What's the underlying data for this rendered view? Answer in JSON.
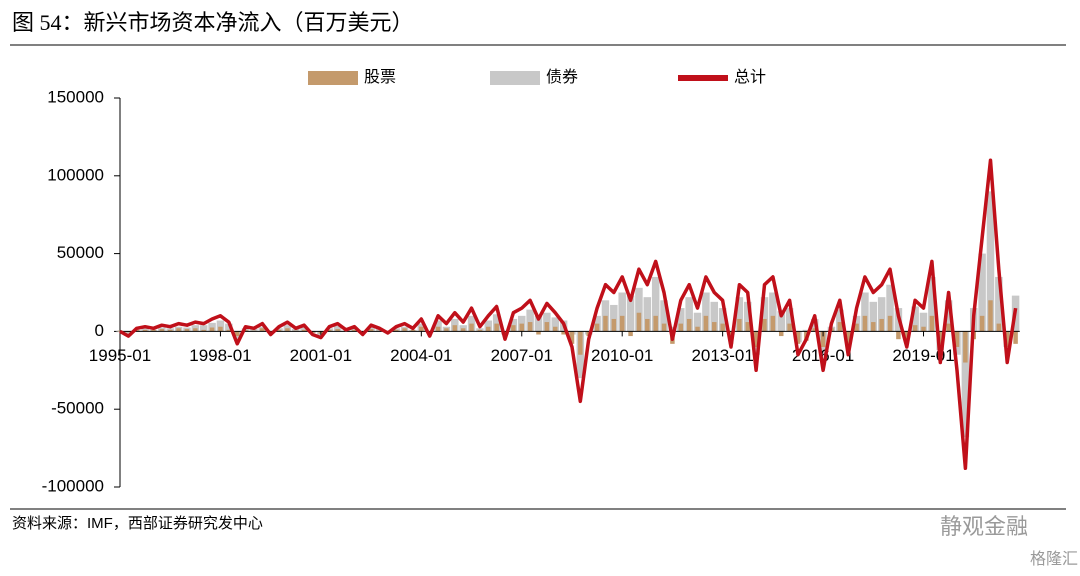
{
  "chart_data": {
    "type": "bar_line",
    "title": "图 54：新兴市场资本净流入（百万美元）",
    "source": "资料来源：IMF，西部证券研究发中心",
    "watermark": [
      "静观金融",
      "格隆汇"
    ],
    "legend": "top",
    "ylim": [
      -100000,
      150000
    ],
    "yticks": [
      -100000,
      -50000,
      0,
      50000,
      100000,
      150000
    ],
    "categories": [
      "1995-01",
      null,
      null,
      null,
      null,
      null,
      null,
      null,
      null,
      null,
      null,
      null,
      "1998-01",
      null,
      null,
      null,
      null,
      null,
      null,
      null,
      null,
      null,
      null,
      null,
      "2001-01",
      null,
      null,
      null,
      null,
      null,
      null,
      null,
      null,
      null,
      null,
      null,
      "2004-01",
      null,
      null,
      null,
      null,
      null,
      null,
      null,
      null,
      null,
      null,
      null,
      "2007-01",
      null,
      null,
      null,
      null,
      null,
      null,
      null,
      null,
      null,
      null,
      null,
      "2010-01",
      null,
      null,
      null,
      null,
      null,
      null,
      null,
      null,
      null,
      null,
      null,
      "2013-01",
      null,
      null,
      null,
      null,
      null,
      null,
      null,
      null,
      null,
      null,
      null,
      "2016-01",
      null,
      null,
      null,
      null,
      null,
      null,
      null,
      null,
      null,
      null,
      null,
      "2019-01",
      null,
      null,
      null,
      null,
      null,
      null,
      null,
      null,
      null,
      null,
      null
    ],
    "series": [
      {
        "name": "股票",
        "color": "#c49a6c",
        "kind": "bar",
        "values": [
          500,
          -500,
          1000,
          1000,
          1000,
          1500,
          1000,
          2000,
          1500,
          2000,
          1000,
          2500,
          3000,
          1000,
          -3000,
          1000,
          500,
          2000,
          -1000,
          1000,
          2000,
          500,
          1000,
          -1000,
          -1500,
          1000,
          1500,
          500,
          1000,
          -1000,
          1500,
          500,
          -500,
          1000,
          2000,
          1000,
          3000,
          -2000,
          3000,
          2000,
          4000,
          2000,
          5000,
          1000,
          3000,
          5000,
          -3000,
          4000,
          5000,
          6000,
          -2000,
          6000,
          3000,
          -2000,
          -8000,
          -15000,
          -3000,
          5000,
          10000,
          8000,
          10000,
          -3000,
          12000,
          8000,
          10000,
          5000,
          -8000,
          5000,
          8000,
          3000,
          10000,
          6000,
          5000,
          -8000,
          8000,
          6000,
          -10000,
          8000,
          10000,
          -3000,
          5000,
          -8000,
          -6000,
          2000,
          -10000,
          2000,
          6000,
          -8000,
          5000,
          10000,
          6000,
          8000,
          10000,
          -5000,
          -8000,
          4000,
          3000,
          10000,
          -8000,
          5000,
          -10000,
          -20000,
          -5000,
          10000,
          20000,
          5000,
          -10000,
          -8000
        ]
      },
      {
        "name": "债券",
        "color": "#c8c8c8",
        "kind": "bar",
        "values": [
          -500,
          -2500,
          1000,
          2000,
          1000,
          2500,
          2000,
          3000,
          2500,
          4000,
          4000,
          5500,
          7000,
          5000,
          -5000,
          2000,
          1500,
          3000,
          -1000,
          2000,
          4000,
          1500,
          3000,
          -1000,
          -2500,
          2000,
          3500,
          500,
          2000,
          -1000,
          2500,
          1500,
          -500,
          2000,
          3000,
          1000,
          5000,
          -1000,
          7000,
          3000,
          8000,
          4000,
          10000,
          2000,
          7000,
          11000,
          -2000,
          8000,
          10000,
          14000,
          10000,
          12000,
          9000,
          7000,
          -2000,
          -30000,
          -2000,
          10000,
          20000,
          17000,
          25000,
          23000,
          28000,
          22000,
          35000,
          20000,
          3000,
          15000,
          22000,
          12000,
          25000,
          19000,
          15000,
          -2000,
          22000,
          19000,
          -15000,
          22000,
          25000,
          13000,
          15000,
          -7000,
          1000,
          8000,
          -15000,
          3000,
          14000,
          -7000,
          10000,
          25000,
          19000,
          22000,
          30000,
          15000,
          -2000,
          16000,
          12000,
          35000,
          -12000,
          20000,
          -15000,
          -68000,
          15000,
          50000,
          90000,
          35000,
          -10000,
          23000
        ]
      },
      {
        "name": "总计",
        "color": "#c0101a",
        "kind": "line",
        "values": [
          0,
          -3000,
          2000,
          3000,
          2000,
          4000,
          3000,
          5000,
          4000,
          6000,
          5000,
          8000,
          10000,
          6000,
          -8000,
          3000,
          2000,
          5000,
          -2000,
          3000,
          6000,
          2000,
          4000,
          -2000,
          -4000,
          3000,
          5000,
          1000,
          3000,
          -2000,
          4000,
          2000,
          -1000,
          3000,
          5000,
          2000,
          8000,
          -3000,
          10000,
          5000,
          12000,
          6000,
          15000,
          3000,
          10000,
          16000,
          -5000,
          12000,
          15000,
          20000,
          8000,
          18000,
          12000,
          5000,
          -10000,
          -45000,
          -5000,
          15000,
          30000,
          25000,
          35000,
          20000,
          40000,
          30000,
          45000,
          25000,
          -5000,
          20000,
          30000,
          15000,
          35000,
          25000,
          20000,
          -10000,
          30000,
          25000,
          -25000,
          30000,
          35000,
          10000,
          20000,
          -15000,
          -5000,
          10000,
          -25000,
          5000,
          20000,
          -15000,
          15000,
          35000,
          25000,
          30000,
          40000,
          10000,
          -10000,
          20000,
          15000,
          45000,
          -20000,
          25000,
          -25000,
          -88000,
          10000,
          60000,
          110000,
          40000,
          -20000,
          15000
        ]
      }
    ]
  }
}
